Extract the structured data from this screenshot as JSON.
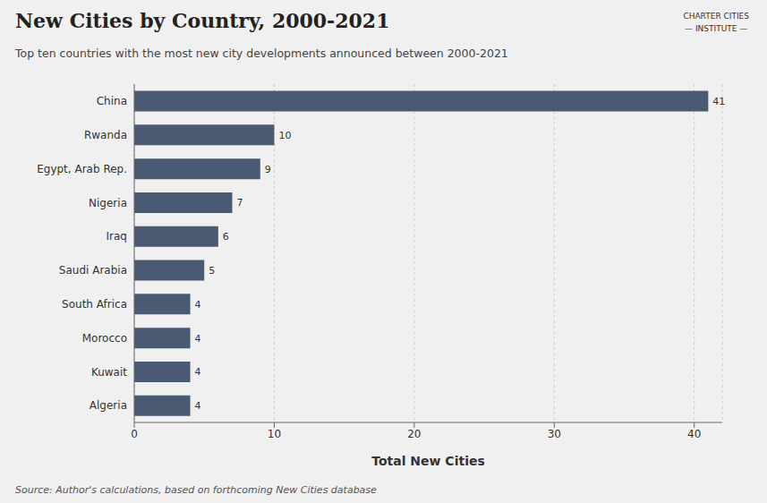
{
  "chart_data": {
    "type": "bar",
    "title": "New Cities by Country, 2000-2021",
    "subtitle": "Top ten countries with the most new city developments announced between 2000-2021",
    "xlabel": "Total New Cities",
    "source": "Source: Author's calculations, based on forthcoming New Cities database",
    "annotations": [
      "CHARTER CITIES",
      "— INSTITUTE —"
    ],
    "categories": [
      "Algeria",
      "Kuwait",
      "Morocco",
      "South Africa",
      "Saudi Arabia",
      "Iraq",
      "Nigeria",
      "Egypt, Arab Rep.",
      "Rwanda",
      "China"
    ],
    "values": [
      4,
      4,
      4,
      4,
      5,
      6,
      7,
      9,
      10,
      41
    ],
    "color": "#4a5a73",
    "orientation": "horizontal",
    "xlim": [
      0,
      42
    ],
    "xticks": [
      0,
      10,
      20,
      30,
      40
    ],
    "grid": true,
    "data_labels": true
  }
}
